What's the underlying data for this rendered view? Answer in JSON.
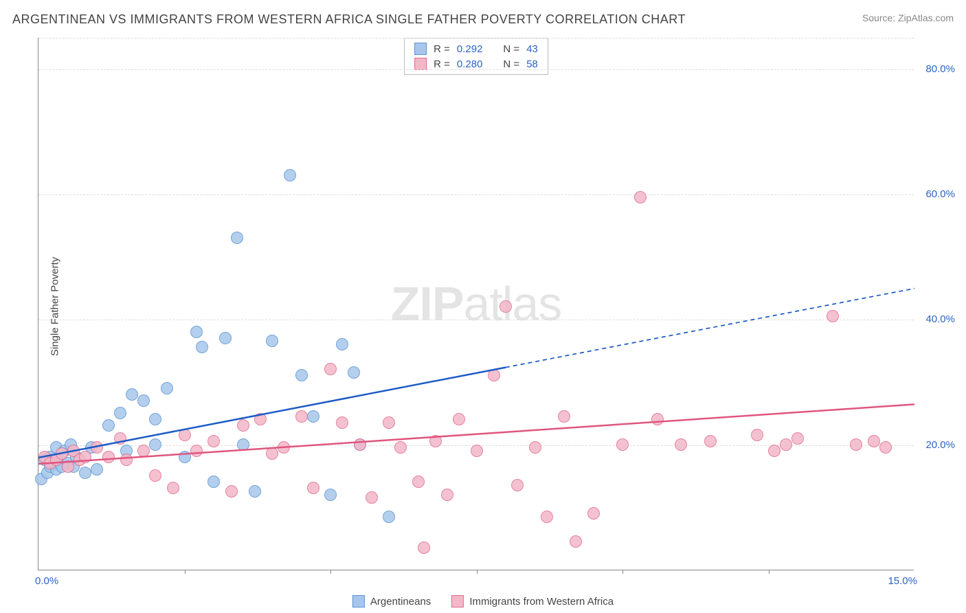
{
  "title": "ARGENTINEAN VS IMMIGRANTS FROM WESTERN AFRICA SINGLE FATHER POVERTY CORRELATION CHART",
  "source": "Source: ZipAtlas.com",
  "ylabel": "Single Father Poverty",
  "watermark_bold": "ZIP",
  "watermark_rest": "atlas",
  "chart": {
    "type": "scatter-with-trend",
    "xlim": [
      0.0,
      15.0
    ],
    "ylim": [
      0.0,
      85.0
    ],
    "xlim_labels": [
      "0.0%",
      "15.0%"
    ],
    "xlabel_color": "#2a63c4",
    "y_gridlines": [
      20.0,
      40.0,
      60.0,
      80.0
    ],
    "y_gridline_labels": [
      "20.0%",
      "40.0%",
      "60.0%",
      "80.0%"
    ],
    "ytick_color": "#2a63c4",
    "grid_color": "#dddddd",
    "x_minor_ticks": [
      2.5,
      5.0,
      7.5,
      10.0,
      12.5
    ],
    "point_radius": 9,
    "background_color": "#ffffff",
    "series": [
      {
        "id": "argentineans",
        "label": "Argentineans",
        "R": "0.292",
        "N": "43",
        "fill": "#a6c7eb",
        "stroke": "#5b93d4",
        "trend": {
          "color": "#1d5bc6",
          "width": 2.5,
          "y_at_x0": 18.0,
          "y_at_x15": 45.0,
          "solid_until_x": 8.0
        },
        "points": [
          [
            0.05,
            14.5
          ],
          [
            0.1,
            17.5
          ],
          [
            0.15,
            15.5
          ],
          [
            0.2,
            16.5
          ],
          [
            0.2,
            18.0
          ],
          [
            0.25,
            17.0
          ],
          [
            0.3,
            19.5
          ],
          [
            0.3,
            16.0
          ],
          [
            0.35,
            17.5
          ],
          [
            0.4,
            16.5
          ],
          [
            0.45,
            19.0
          ],
          [
            0.5,
            17.0
          ],
          [
            0.55,
            20.0
          ],
          [
            0.6,
            16.5
          ],
          [
            0.65,
            18.0
          ],
          [
            0.8,
            15.5
          ],
          [
            0.9,
            19.5
          ],
          [
            1.0,
            16.0
          ],
          [
            1.2,
            23.0
          ],
          [
            1.4,
            25.0
          ],
          [
            1.5,
            19.0
          ],
          [
            1.6,
            28.0
          ],
          [
            1.8,
            27.0
          ],
          [
            2.0,
            24.0
          ],
          [
            2.0,
            20.0
          ],
          [
            2.2,
            29.0
          ],
          [
            2.5,
            18.0
          ],
          [
            2.7,
            38.0
          ],
          [
            2.8,
            35.5
          ],
          [
            3.0,
            14.0
          ],
          [
            3.2,
            37.0
          ],
          [
            3.4,
            53.0
          ],
          [
            3.5,
            20.0
          ],
          [
            3.7,
            12.5
          ],
          [
            4.0,
            36.5
          ],
          [
            4.3,
            63.0
          ],
          [
            4.5,
            31.0
          ],
          [
            4.7,
            24.5
          ],
          [
            5.0,
            12.0
          ],
          [
            5.2,
            36.0
          ],
          [
            5.4,
            31.5
          ],
          [
            5.5,
            20.0
          ],
          [
            6.0,
            8.5
          ]
        ]
      },
      {
        "id": "immigrants-western-africa",
        "label": "Immigrants from Western Africa",
        "R": "0.280",
        "N": "58",
        "fill": "#f3b7c8",
        "stroke": "#e06c8e",
        "trend": {
          "color": "#e0557e",
          "width": 2.5,
          "y_at_x0": 17.0,
          "y_at_x15": 26.5,
          "solid_until_x": 15.0
        },
        "points": [
          [
            0.1,
            18.0
          ],
          [
            0.2,
            17.0
          ],
          [
            0.3,
            17.5
          ],
          [
            0.4,
            18.5
          ],
          [
            0.5,
            16.5
          ],
          [
            0.6,
            19.0
          ],
          [
            0.7,
            17.5
          ],
          [
            0.8,
            18.0
          ],
          [
            1.0,
            19.5
          ],
          [
            1.2,
            18.0
          ],
          [
            1.4,
            21.0
          ],
          [
            1.5,
            17.5
          ],
          [
            1.8,
            19.0
          ],
          [
            2.0,
            15.0
          ],
          [
            2.3,
            13.0
          ],
          [
            2.5,
            21.5
          ],
          [
            2.7,
            19.0
          ],
          [
            3.0,
            20.5
          ],
          [
            3.3,
            12.5
          ],
          [
            3.5,
            23.0
          ],
          [
            3.8,
            24.0
          ],
          [
            4.0,
            18.5
          ],
          [
            4.2,
            19.5
          ],
          [
            4.5,
            24.5
          ],
          [
            4.7,
            13.0
          ],
          [
            5.0,
            32.0
          ],
          [
            5.2,
            23.5
          ],
          [
            5.5,
            20.0
          ],
          [
            5.7,
            11.5
          ],
          [
            6.0,
            23.5
          ],
          [
            6.2,
            19.5
          ],
          [
            6.5,
            14.0
          ],
          [
            6.6,
            3.5
          ],
          [
            6.8,
            20.5
          ],
          [
            7.0,
            12.0
          ],
          [
            7.2,
            24.0
          ],
          [
            7.5,
            19.0
          ],
          [
            7.8,
            31.0
          ],
          [
            8.0,
            42.0
          ],
          [
            8.2,
            13.5
          ],
          [
            8.5,
            19.5
          ],
          [
            8.7,
            8.5
          ],
          [
            9.0,
            24.5
          ],
          [
            9.2,
            4.5
          ],
          [
            9.5,
            9.0
          ],
          [
            10.0,
            20.0
          ],
          [
            10.3,
            59.5
          ],
          [
            10.6,
            24.0
          ],
          [
            11.0,
            20.0
          ],
          [
            11.5,
            20.5
          ],
          [
            12.3,
            21.5
          ],
          [
            12.6,
            19.0
          ],
          [
            12.8,
            20.0
          ],
          [
            13.0,
            21.0
          ],
          [
            13.6,
            40.5
          ],
          [
            14.0,
            20.0
          ],
          [
            14.3,
            20.5
          ],
          [
            14.5,
            19.5
          ]
        ]
      }
    ]
  },
  "top_legend": {
    "r_label": "R =",
    "n_label": "N =",
    "stat_color": "#2a63c4"
  }
}
